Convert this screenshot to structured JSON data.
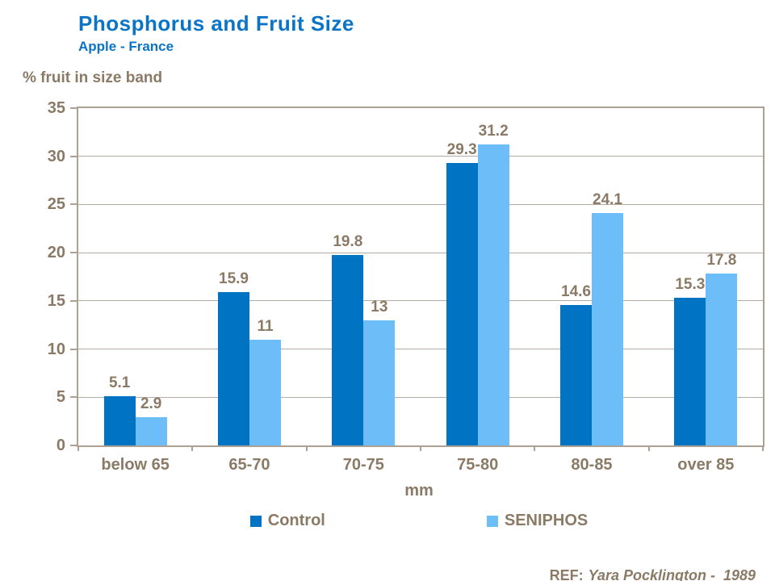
{
  "title": "Phosphorus and Fruit Size",
  "subtitle": "Apple - France",
  "y_axis_title": "% fruit in size band",
  "x_axis_title": "mm",
  "ref_label": "REF:",
  "ref_value": "Yara Pocklington -  1989",
  "colors": {
    "title_blue": "#0B74C6",
    "text_taupe": "#8A7A66",
    "axis": "#ADA194",
    "gridline": "#B6ABA0",
    "control": "#0073C2",
    "seniphos": "#6CBDF8"
  },
  "chart_data": {
    "type": "bar",
    "title": "Phosphorus and Fruit Size",
    "subtitle": "Apple - France",
    "categories": [
      "below 65",
      "65-70",
      "70-75",
      "75-80",
      "80-85",
      "over 85"
    ],
    "series": [
      {
        "name": "Control",
        "color_key": "control",
        "values": [
          5.1,
          15.9,
          19.8,
          29.3,
          14.6,
          15.3
        ]
      },
      {
        "name": "SENIPHOS",
        "color_key": "seniphos",
        "values": [
          2.9,
          11,
          13,
          31.2,
          24.1,
          17.8
        ]
      }
    ],
    "xlabel": "mm",
    "ylabel": "% fruit in size band",
    "ylim": [
      0,
      35
    ],
    "ytick_step": 5,
    "yticks": [
      0,
      5,
      10,
      15,
      20,
      25,
      30,
      35
    ],
    "grid": true,
    "data_labels": true,
    "legend_position": "bottom",
    "reference": "REF: Yara Pocklington - 1989"
  }
}
